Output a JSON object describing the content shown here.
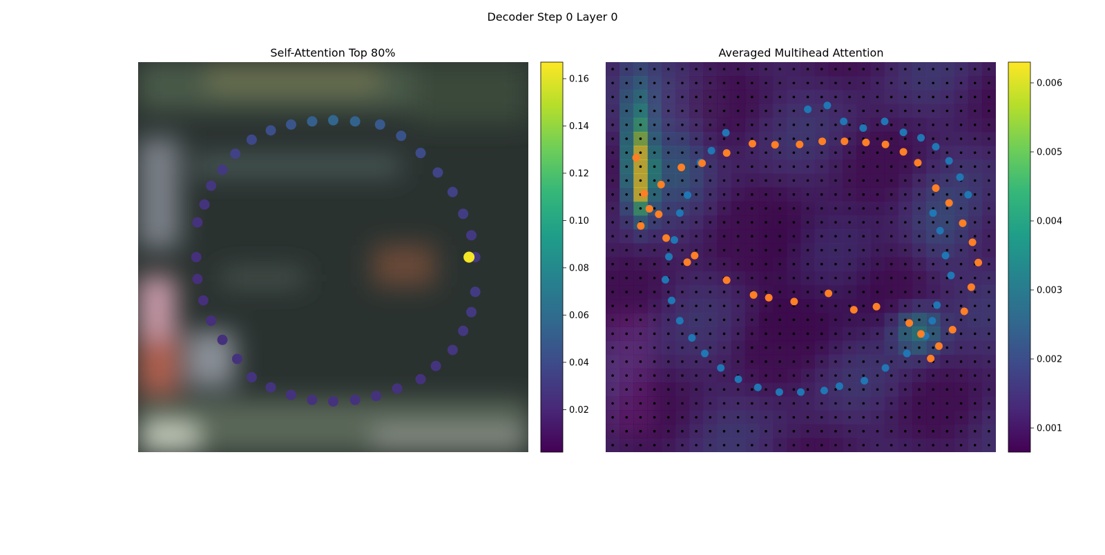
{
  "figure": {
    "suptitle": "Decoder Step 0 Layer 0"
  },
  "colormap": [
    "#440154",
    "#482878",
    "#3e4989",
    "#31688e",
    "#26828e",
    "#1f9e89",
    "#35b779",
    "#6ece58",
    "#b5de2b",
    "#fde725"
  ],
  "chart_data": [
    {
      "type": "scatter",
      "title": "Self-Attention Top 80%",
      "background": "blurred photo",
      "colorbar": {
        "min": 0.002,
        "max": 0.167,
        "ticks": [
          "0.02",
          "0.04",
          "0.06",
          "0.08",
          "0.10",
          "0.12",
          "0.14",
          "0.16"
        ],
        "tick_values": [
          0.02,
          0.04,
          0.06,
          0.08,
          0.1,
          0.12,
          0.14,
          0.16
        ]
      },
      "series": [
        {
          "x": [
            0.864,
            0.854,
            0.833,
            0.806,
            0.768,
            0.724,
            0.674,
            0.62,
            0.556,
            0.5,
            0.446,
            0.392,
            0.34,
            0.291,
            0.249,
            0.216,
            0.187,
            0.17,
            0.152,
            0.149,
            0.152,
            0.167,
            0.187,
            0.216,
            0.254,
            0.291,
            0.34,
            0.392,
            0.446,
            0.5,
            0.556,
            0.61,
            0.664,
            0.724,
            0.763,
            0.806,
            0.833,
            0.854,
            0.864
          ],
          "y": [
            0.5,
            0.444,
            0.389,
            0.333,
            0.283,
            0.233,
            0.189,
            0.16,
            0.152,
            0.149,
            0.152,
            0.16,
            0.175,
            0.199,
            0.235,
            0.276,
            0.317,
            0.365,
            0.411,
            0.5,
            0.556,
            0.611,
            0.663,
            0.712,
            0.761,
            0.808,
            0.834,
            0.853,
            0.866,
            0.87,
            0.866,
            0.856,
            0.837,
            0.813,
            0.779,
            0.738,
            0.689,
            0.641,
            0.589
          ],
          "values": [
            0.03,
            0.03,
            0.032,
            0.034,
            0.036,
            0.04,
            0.044,
            0.048,
            0.054,
            0.056,
            0.052,
            0.046,
            0.042,
            0.038,
            0.034,
            0.03,
            0.028,
            0.027,
            0.026,
            0.025,
            0.024,
            0.024,
            0.024,
            0.025,
            0.026,
            0.027,
            0.027,
            0.026,
            0.026,
            0.026,
            0.026,
            0.026,
            0.026,
            0.026,
            0.027,
            0.028,
            0.029,
            0.03,
            0.031
          ],
          "highlight": {
            "x": 0.848,
            "y": 0.5,
            "value": 0.165
          }
        }
      ]
    },
    {
      "type": "heatmap",
      "title": "Averaged Multihead Attention",
      "grid": "28x28",
      "colorbar": {
        "min": 0.00065,
        "max": 0.0063,
        "ticks": [
          "0.001",
          "0.002",
          "0.003",
          "0.004",
          "0.005",
          "0.006"
        ],
        "tick_values": [
          0.001,
          0.002,
          0.003,
          0.004,
          0.005,
          0.006
        ]
      },
      "series": [
        {
          "marker_color": "#1f77b4",
          "x": [
            0.518,
            0.568,
            0.61,
            0.66,
            0.715,
            0.763,
            0.808,
            0.846,
            0.88,
            0.908,
            0.929,
            0.839,
            0.857,
            0.871,
            0.885,
            0.849,
            0.837,
            0.82,
            0.772,
            0.717,
            0.663,
            0.599,
            0.56,
            0.5,
            0.445,
            0.39,
            0.34,
            0.295,
            0.254,
            0.221,
            0.19,
            0.169,
            0.153,
            0.162,
            0.176,
            0.19,
            0.21,
            0.243,
            0.271,
            0.308
          ],
          "y": [
            0.121,
            0.111,
            0.152,
            0.169,
            0.152,
            0.18,
            0.194,
            0.217,
            0.253,
            0.295,
            0.34,
            0.387,
            0.432,
            0.496,
            0.547,
            0.623,
            0.663,
            0.702,
            0.747,
            0.784,
            0.817,
            0.831,
            0.842,
            0.846,
            0.846,
            0.834,
            0.813,
            0.784,
            0.747,
            0.707,
            0.663,
            0.611,
            0.558,
            0.499,
            0.456,
            0.387,
            0.341,
            0.257,
            0.227,
            0.181
          ],
          "role": "blue"
        },
        {
          "marker_color": "#ff7f25",
          "x": [
            0.09,
            0.112,
            0.142,
            0.194,
            0.247,
            0.31,
            0.376,
            0.434,
            0.497,
            0.555,
            0.612,
            0.667,
            0.717,
            0.763,
            0.8,
            0.846,
            0.88,
            0.915,
            0.94,
            0.955,
            0.937,
            0.919,
            0.889,
            0.854,
            0.833,
            0.808,
            0.778,
            0.694,
            0.636,
            0.571,
            0.483,
            0.418,
            0.379,
            0.31,
            0.228,
            0.209,
            0.155,
            0.136,
            0.099,
            0.078
          ],
          "y": [
            0.42,
            0.376,
            0.314,
            0.27,
            0.259,
            0.233,
            0.209,
            0.212,
            0.211,
            0.203,
            0.203,
            0.206,
            0.211,
            0.23,
            0.258,
            0.323,
            0.361,
            0.413,
            0.462,
            0.514,
            0.577,
            0.639,
            0.686,
            0.728,
            0.76,
            0.697,
            0.669,
            0.627,
            0.635,
            0.593,
            0.614,
            0.604,
            0.597,
            0.559,
            0.496,
            0.513,
            0.451,
            0.39,
            0.337,
            0.245
          ],
          "role": "orange"
        }
      ]
    }
  ]
}
